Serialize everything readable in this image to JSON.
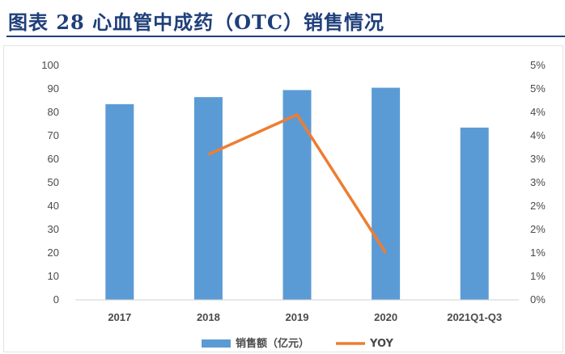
{
  "figure": {
    "title": "图表 28   心血管中成药（OTC）销售情况"
  },
  "chart_data": {
    "type": "bar",
    "categories": [
      "2017",
      "2018",
      "2019",
      "2020",
      "2021Q1-Q3"
    ],
    "series": [
      {
        "name": "销售额（亿元）",
        "kind": "bar",
        "axis": "left",
        "color": "#5b9bd5",
        "values": [
          83.5,
          86.5,
          89.5,
          90.5,
          73.5
        ]
      },
      {
        "name": "YOY",
        "kind": "line",
        "axis": "right",
        "color": "#ed7d31",
        "values": [
          null,
          3.1,
          3.95,
          1.0,
          null
        ]
      }
    ],
    "y_left": {
      "min": 0,
      "max": 100,
      "ticks": [
        "0",
        "10",
        "20",
        "30",
        "40",
        "50",
        "60",
        "70",
        "80",
        "90",
        "100"
      ]
    },
    "y_right": {
      "min": 0,
      "max": 5,
      "ticks": [
        "0%",
        "1%",
        "1%",
        "2%",
        "2%",
        "3%",
        "3%",
        "4%",
        "4%",
        "5%",
        "5%"
      ]
    },
    "grid": false,
    "legend_position": "bottom"
  }
}
